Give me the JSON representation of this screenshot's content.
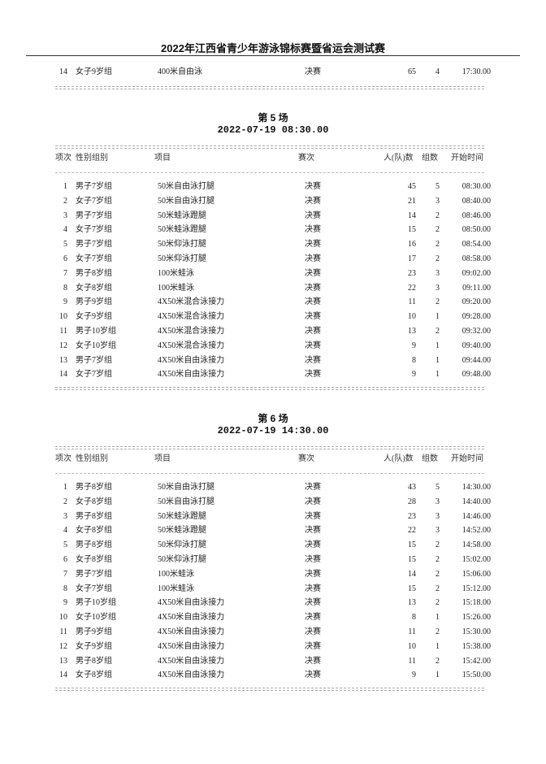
{
  "document": {
    "title": "2022年江西省青少年游泳锦标赛暨省运会测试赛"
  },
  "carryover": {
    "rows": [
      [
        "14",
        "女子9岁组",
        "400米自由泳",
        "决赛",
        "65",
        "4",
        "17:30.00"
      ]
    ]
  },
  "headers": {
    "idx": "项次",
    "category": "性别组别",
    "event": "项目",
    "round": "赛次",
    "count": "人(队)数",
    "groups": "组数",
    "time": "开始时间"
  },
  "sessions": [
    {
      "title": "第  5  场",
      "date": "2022-07-19    08:30.00",
      "rows": [
        [
          "1",
          "男子7岁组",
          "50米自由泳打腿",
          "决赛",
          "45",
          "5",
          "08:30.00"
        ],
        [
          "2",
          "女子7岁组",
          "50米自由泳打腿",
          "决赛",
          "21",
          "3",
          "08:40.00"
        ],
        [
          "3",
          "男子7岁组",
          "50米蛙泳蹬腿",
          "决赛",
          "14",
          "2",
          "08:46.00"
        ],
        [
          "4",
          "女子7岁组",
          "50米蛙泳蹬腿",
          "决赛",
          "15",
          "2",
          "08:50.00"
        ],
        [
          "5",
          "男子7岁组",
          "50米仰泳打腿",
          "决赛",
          "16",
          "2",
          "08:54.00"
        ],
        [
          "6",
          "女子7岁组",
          "50米仰泳打腿",
          "决赛",
          "17",
          "2",
          "08:58.00"
        ],
        [
          "7",
          "男子8岁组",
          "100米蛙泳",
          "决赛",
          "23",
          "3",
          "09:02.00"
        ],
        [
          "8",
          "女子8岁组",
          "100米蛙泳",
          "决赛",
          "22",
          "3",
          "09:11.00"
        ],
        [
          "9",
          "男子9岁组",
          "4X50米混合泳接力",
          "决赛",
          "11",
          "2",
          "09:20.00"
        ],
        [
          "10",
          "女子9岁组",
          "4X50米混合泳接力",
          "决赛",
          "10",
          "1",
          "09:28.00"
        ],
        [
          "11",
          "男子10岁组",
          "4X50米混合泳接力",
          "决赛",
          "13",
          "2",
          "09:32.00"
        ],
        [
          "12",
          "女子10岁组",
          "4X50米混合泳接力",
          "决赛",
          "9",
          "1",
          "09:40.00"
        ],
        [
          "13",
          "男子7岁组",
          "4X50米自由泳接力",
          "决赛",
          "8",
          "1",
          "09:44.00"
        ],
        [
          "14",
          "女子7岁组",
          "4X50米自由泳接力",
          "决赛",
          "9",
          "1",
          "09:48.00"
        ]
      ]
    },
    {
      "title": "第  6  场",
      "date": "2022-07-19    14:30.00",
      "rows": [
        [
          "1",
          "男子8岁组",
          "50米自由泳打腿",
          "决赛",
          "43",
          "5",
          "14:30.00"
        ],
        [
          "2",
          "女子8岁组",
          "50米自由泳打腿",
          "决赛",
          "28",
          "3",
          "14:40.00"
        ],
        [
          "3",
          "男子8岁组",
          "50米蛙泳蹬腿",
          "决赛",
          "23",
          "3",
          "14:46.00"
        ],
        [
          "4",
          "女子8岁组",
          "50米蛙泳蹬腿",
          "决赛",
          "22",
          "3",
          "14:52.00"
        ],
        [
          "5",
          "男子8岁组",
          "50米仰泳打腿",
          "决赛",
          "15",
          "2",
          "14:58.00"
        ],
        [
          "6",
          "女子8岁组",
          "50米仰泳打腿",
          "决赛",
          "15",
          "2",
          "15:02.00"
        ],
        [
          "7",
          "男子7岁组",
          "100米蛙泳",
          "决赛",
          "14",
          "2",
          "15:06.00"
        ],
        [
          "8",
          "女子7岁组",
          "100米蛙泳",
          "决赛",
          "15",
          "2",
          "15:12.00"
        ],
        [
          "9",
          "男子10岁组",
          "4X50米自由泳接力",
          "决赛",
          "13",
          "2",
          "15:18.00"
        ],
        [
          "10",
          "女子10岁组",
          "4X50米自由泳接力",
          "决赛",
          "8",
          "1",
          "15:26.00"
        ],
        [
          "11",
          "男子9岁组",
          "4X50米自由泳接力",
          "决赛",
          "11",
          "2",
          "15:30.00"
        ],
        [
          "12",
          "女子9岁组",
          "4X50米自由泳接力",
          "决赛",
          "10",
          "1",
          "15:38.00"
        ],
        [
          "13",
          "男子8岁组",
          "4X50米自由泳接力",
          "决赛",
          "11",
          "2",
          "15:42.00"
        ],
        [
          "14",
          "女子8岁组",
          "4X50米自由泳接力",
          "决赛",
          "9",
          "1",
          "15:50.00"
        ]
      ]
    }
  ]
}
